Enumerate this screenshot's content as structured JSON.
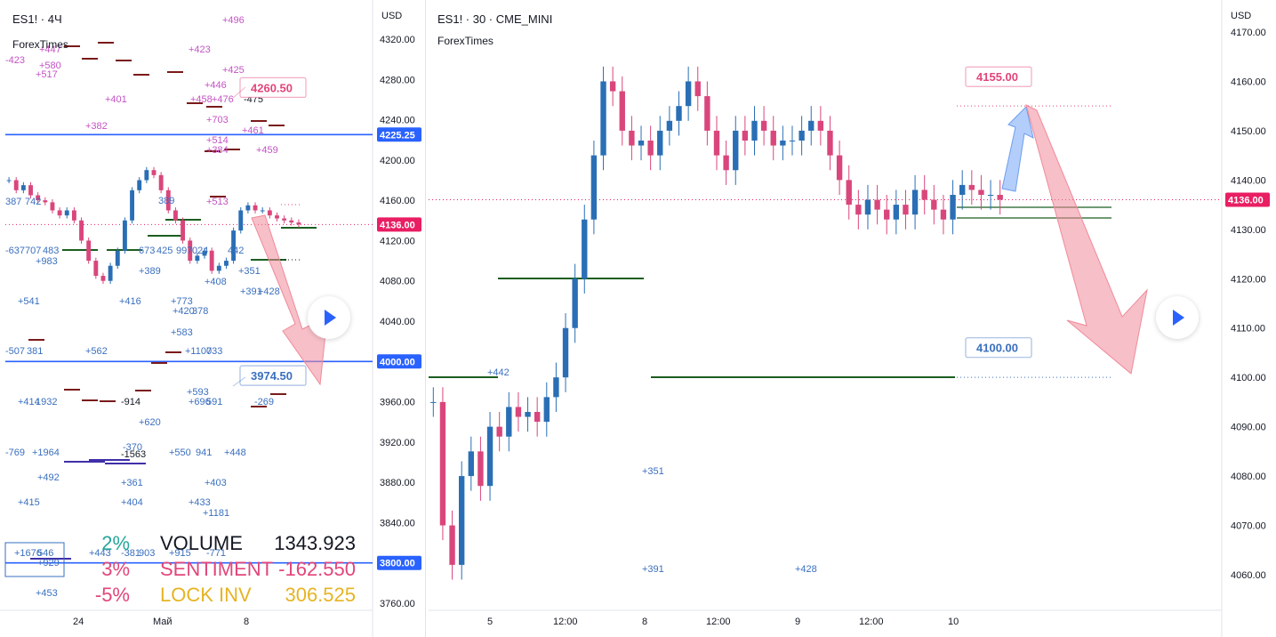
{
  "left": {
    "title": "ES1! · 4Ч",
    "subtitle": "ForexTimes",
    "currency": "USD",
    "price_ticks": [
      "4320.00",
      "4280.00",
      "4240.00",
      "4200.00",
      "4160.00",
      "4120.00",
      "4080.00",
      "4040.00",
      "4000.00",
      "3960.00",
      "3920.00",
      "3880.00",
      "3840.00",
      "3800.00",
      "3760.00"
    ],
    "time_ticks": [
      "24",
      "Май",
      "8"
    ],
    "markers": [
      {
        "label": "4225.25",
        "color": "#2962ff"
      },
      {
        "label": "4136.00",
        "color": "#e91e63"
      },
      {
        "label": "4000.00",
        "color": "#2962ff"
      },
      {
        "label": "3800.00",
        "color": "#2962ff"
      }
    ],
    "callouts": [
      {
        "label": "4260.50",
        "color": "#e2457a"
      },
      {
        "label": "3974.50",
        "color": "#3a6fbf"
      }
    ],
    "stats": [
      {
        "pct": "2%",
        "name": "VOLUME",
        "value": "1343.923",
        "pct_color": "#26a69a",
        "name_color": "#131722",
        "value_color": "#131722"
      },
      {
        "pct": "3%",
        "name": "SENTIMENT",
        "value": "-162.550",
        "pct_color": "#e2457a",
        "name_color": "#e2457a",
        "value_color": "#e2457a"
      },
      {
        "pct": "-5%",
        "name": "LOCK INV",
        "value": "306.525",
        "pct_color": "#e2457a",
        "name_color": "#e6b422",
        "value_color": "#e6b422"
      }
    ],
    "annotations": [
      {
        "t": "+496",
        "c": "#c453c4"
      },
      {
        "t": "+423",
        "c": "#c453c4"
      },
      {
        "t": "-423",
        "c": "#c453c4"
      },
      {
        "t": "+447",
        "c": "#c453c4"
      },
      {
        "t": "+580",
        "c": "#c453c4"
      },
      {
        "t": "+517",
        "c": "#c453c4"
      },
      {
        "t": "+425",
        "c": "#c453c4"
      },
      {
        "t": "+446",
        "c": "#c453c4"
      },
      {
        "t": "+401",
        "c": "#c453c4"
      },
      {
        "t": "+458",
        "c": "#c453c4"
      },
      {
        "t": "+476",
        "c": "#c453c4"
      },
      {
        "t": "-475",
        "c": "#131722"
      },
      {
        "t": "+703",
        "c": "#c453c4"
      },
      {
        "t": "+382",
        "c": "#c453c4"
      },
      {
        "t": "+461",
        "c": "#c453c4"
      },
      {
        "t": "+514",
        "c": "#c453c4"
      },
      {
        "t": "+384",
        "c": "#c453c4"
      },
      {
        "t": "+459",
        "c": "#c453c4"
      },
      {
        "t": "+513",
        "c": "#c453c4"
      },
      {
        "t": "387",
        "c": "#3a6fbf"
      },
      {
        "t": "742",
        "c": "#3a6fbf"
      },
      {
        "t": "389",
        "c": "#3a6fbf"
      },
      {
        "t": "-637",
        "c": "#3a6fbf"
      },
      {
        "t": "707",
        "c": "#3a6fbf"
      },
      {
        "t": "483",
        "c": "#3a6fbf"
      },
      {
        "t": "+983",
        "c": "#3a6fbf"
      },
      {
        "t": "673",
        "c": "#3a6fbf"
      },
      {
        "t": "425",
        "c": "#3a6fbf"
      },
      {
        "t": "997",
        "c": "#3a6fbf"
      },
      {
        "t": "024",
        "c": "#3a6fbf"
      },
      {
        "t": "442",
        "c": "#3a6fbf"
      },
      {
        "t": "+389",
        "c": "#3a6fbf"
      },
      {
        "t": "+351",
        "c": "#3a6fbf"
      },
      {
        "t": "+408",
        "c": "#3a6fbf"
      },
      {
        "t": "+391",
        "c": "#3a6fbf"
      },
      {
        "t": "+428",
        "c": "#3a6fbf"
      },
      {
        "t": "+541",
        "c": "#3a6fbf"
      },
      {
        "t": "+416",
        "c": "#3a6fbf"
      },
      {
        "t": "+773",
        "c": "#3a6fbf"
      },
      {
        "t": "+420",
        "c": "#3a6fbf"
      },
      {
        "t": "378",
        "c": "#3a6fbf"
      },
      {
        "t": "+583",
        "c": "#3a6fbf"
      },
      {
        "t": "-507",
        "c": "#3a6fbf"
      },
      {
        "t": "381",
        "c": "#3a6fbf"
      },
      {
        "t": "+562",
        "c": "#3a6fbf"
      },
      {
        "t": "+1100",
        "c": "#3a6fbf"
      },
      {
        "t": "733",
        "c": "#3a6fbf"
      },
      {
        "t": "+593",
        "c": "#3a6fbf"
      },
      {
        "t": "+696",
        "c": "#3a6fbf"
      },
      {
        "t": "591",
        "c": "#3a6fbf"
      },
      {
        "t": "-269",
        "c": "#3a6fbf"
      },
      {
        "t": "+414",
        "c": "#3a6fbf"
      },
      {
        "t": "1932",
        "c": "#3a6fbf"
      },
      {
        "t": "-914",
        "c": "#131722"
      },
      {
        "t": "+620",
        "c": "#3a6fbf"
      },
      {
        "t": "-769",
        "c": "#3a6fbf"
      },
      {
        "t": "+1964",
        "c": "#3a6fbf"
      },
      {
        "t": "-370",
        "c": "#3a6fbf"
      },
      {
        "t": "-1563",
        "c": "#131722"
      },
      {
        "t": "+550",
        "c": "#3a6fbf"
      },
      {
        "t": "941",
        "c": "#3a6fbf"
      },
      {
        "t": "+448",
        "c": "#3a6fbf"
      },
      {
        "t": "+492",
        "c": "#3a6fbf"
      },
      {
        "t": "+361",
        "c": "#3a6fbf"
      },
      {
        "t": "+403",
        "c": "#3a6fbf"
      },
      {
        "t": "+415",
        "c": "#3a6fbf"
      },
      {
        "t": "+404",
        "c": "#3a6fbf"
      },
      {
        "t": "+433",
        "c": "#3a6fbf"
      },
      {
        "t": "+1181",
        "c": "#3a6fbf"
      },
      {
        "t": "+1676",
        "c": "#3a6fbf"
      },
      {
        "t": "546",
        "c": "#3a6fbf"
      },
      {
        "t": "+929",
        "c": "#3a6fbf"
      },
      {
        "t": "+443",
        "c": "#3a6fbf"
      },
      {
        "t": "-381",
        "c": "#3a6fbf"
      },
      {
        "t": "903",
        "c": "#3a6fbf"
      },
      {
        "t": "+915",
        "c": "#3a6fbf"
      },
      {
        "t": "-771",
        "c": "#3a6fbf"
      },
      {
        "t": "+453",
        "c": "#3a6fbf"
      }
    ]
  },
  "right": {
    "title": "ES1! · 30 · CME_MINI",
    "subtitle": "ForexTimes",
    "currency": "USD",
    "price_ticks": [
      "4170.00",
      "4160.00",
      "4150.00",
      "4140.00",
      "4130.00",
      "4120.00",
      "4110.00",
      "4100.00",
      "4090.00",
      "4080.00",
      "4070.00",
      "4060.00"
    ],
    "time_ticks": [
      "5",
      "12:00",
      "8",
      "12:00",
      "9",
      "12:00",
      "10"
    ],
    "markers": [
      {
        "label": "4136.00",
        "color": "#e91e63"
      }
    ],
    "callouts": [
      {
        "label": "4155.00",
        "color": "#e2457a"
      },
      {
        "label": "4100.00",
        "color": "#3a6fbf"
      }
    ],
    "annotations": [
      {
        "t": "+442",
        "c": "#3a6fbf"
      },
      {
        "t": "+351",
        "c": "#3a6fbf"
      },
      {
        "t": "+391",
        "c": "#3a6fbf"
      },
      {
        "t": "+428",
        "c": "#3a6fbf"
      }
    ]
  },
  "chart_data": [
    {
      "type": "line",
      "title": "ES1! · 4Ч",
      "ylabel": "USD",
      "ylim": [
        3750,
        4340
      ],
      "series": [],
      "x": [
        0,
        1,
        2,
        3,
        4,
        5,
        6,
        7,
        8,
        9,
        10,
        11,
        12,
        13,
        14,
        15,
        16,
        17,
        18,
        19,
        20,
        21,
        22,
        23,
        24,
        25,
        26,
        27,
        28,
        29,
        30,
        31,
        32,
        33,
        34,
        35,
        36,
        37,
        38,
        39,
        40
      ],
      "values": [
        4180,
        4170,
        4175,
        4165,
        4160,
        4158,
        4150,
        4145,
        4150,
        4140,
        4120,
        4100,
        4085,
        4080,
        4095,
        4110,
        4140,
        4170,
        4180,
        4190,
        4185,
        4170,
        4150,
        4140,
        4120,
        4100,
        4105,
        4110,
        4090,
        4095,
        4100,
        4130,
        4150,
        4155,
        4150,
        4150,
        4145,
        4142,
        4140,
        4138,
        4136
      ],
      "levels": [
        4225.25,
        4136.0,
        4000.0,
        3800.0
      ],
      "targets": [
        4260.5,
        3974.5
      ]
    },
    {
      "type": "line",
      "title": "ES1! · 30 · CME_MINI",
      "ylabel": "USD",
      "ylim": [
        4057,
        4173
      ],
      "series": [],
      "x": [
        0,
        1,
        2,
        3,
        4,
        5,
        6,
        7,
        8,
        9,
        10,
        11,
        12,
        13,
        14,
        15,
        16,
        17,
        18,
        19,
        20,
        21,
        22,
        23,
        24,
        25,
        26,
        27,
        28,
        29,
        30,
        31,
        32,
        33,
        34,
        35,
        36,
        37,
        38,
        39,
        40,
        41,
        42,
        43,
        44,
        45,
        46,
        47,
        48,
        49,
        50,
        51,
        52,
        53,
        54,
        55,
        56,
        57,
        58,
        59,
        60
      ],
      "values": [
        4095,
        4070,
        4062,
        4080,
        4085,
        4078,
        4090,
        4088,
        4094,
        4092,
        4093,
        4091,
        4096,
        4100,
        4110,
        4120,
        4132,
        4145,
        4160,
        4158,
        4150,
        4147,
        4148,
        4145,
        4150,
        4152,
        4155,
        4160,
        4157,
        4150,
        4145,
        4142,
        4150,
        4148,
        4152,
        4150,
        4147,
        4148,
        4148,
        4150,
        4152,
        4150,
        4145,
        4140,
        4135,
        4133,
        4136,
        4134,
        4132,
        4135,
        4133,
        4138,
        4136,
        4134,
        4132,
        4137,
        4139,
        4138,
        4137,
        4137,
        4136
      ],
      "levels": [
        4136.0
      ],
      "targets": [
        4155.0,
        4100.0
      ]
    }
  ]
}
